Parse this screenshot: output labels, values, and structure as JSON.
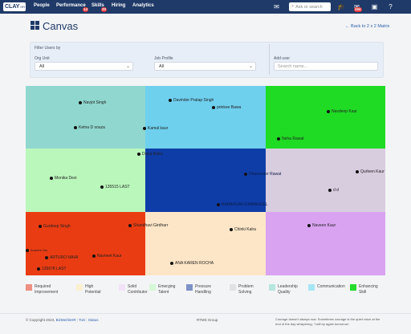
{
  "topbar": {
    "logo": "CLAY",
    "nav": [
      "People",
      "Performance",
      "Skills",
      "Hiring",
      "Analytics"
    ],
    "badges": {
      "performance": "14",
      "skills": "20",
      "notifications": "104"
    },
    "search_placeholder": "Ask or search"
  },
  "page": {
    "title": "Canvas",
    "back_link": "Back to 2 x 2 Matrix"
  },
  "filters": {
    "section_label": "Filter Users by",
    "org_unit_label": "Org Unit",
    "org_unit_value": "All",
    "job_profile_label": "Job Profile",
    "job_profile_value": "All",
    "user_label": "Add user",
    "user_placeholder": "Search name..."
  },
  "matrix": {
    "cells": [
      {
        "row": 0,
        "col": 0,
        "color": "#90d8cf"
      },
      {
        "row": 0,
        "col": 1,
        "color": "#6fd0ee"
      },
      {
        "row": 0,
        "col": 2,
        "color": "#1fdb24"
      },
      {
        "row": 1,
        "col": 0,
        "color": "#baf7bb"
      },
      {
        "row": 1,
        "col": 1,
        "color": "#0f3da8"
      },
      {
        "row": 1,
        "col": 2,
        "color": "#d8ccdf"
      },
      {
        "row": 2,
        "col": 0,
        "color": "#ea3c12"
      },
      {
        "row": 2,
        "col": 1,
        "color": "#fde6c7"
      },
      {
        "row": 2,
        "col": 2,
        "color": "#d9a3f1"
      }
    ],
    "people": [
      "Navjot Singh",
      "Ketna D souza",
      "Davinder Pratap Singh",
      "prinkee Bawa",
      "Kamal kaur",
      "Navdeep Kaur",
      "Neha Rawat",
      "Divya Batra",
      "Monika Devi",
      "135515 LAST",
      "Dhanender Rawat",
      "BARBAGAN EMMANUEL",
      "Qurleen Kaur",
      "d d",
      "Gurdeep Singh",
      "Shandhavi Girdharr",
      "Ananthi Yes",
      "ARTURO NAVA",
      "Navneet Kaur",
      "135678 LAST",
      "Chinki Kalra",
      "ANA KAREN ROCHA",
      "Naveen Kaur"
    ]
  },
  "legend": [
    {
      "label_1": "Required",
      "label_2": "Improvement",
      "color": "#ee8f82"
    },
    {
      "label_1": "High",
      "label_2": "Potential",
      "color": "#fcefcf"
    },
    {
      "label_1": "Solid",
      "label_2": "Contributor",
      "color": "#f2e2f7"
    },
    {
      "label_1": "Emerging",
      "label_2": "Talent",
      "color": "#d4f8d5"
    },
    {
      "label_1": "Pressure",
      "label_2": "Handling",
      "color": "#7f92c8"
    },
    {
      "label_1": "Problem",
      "label_2": "Solving",
      "color": "#e2e2e2"
    },
    {
      "label_1": "Leadership",
      "label_2": "Quality",
      "color": "#b6e6df"
    },
    {
      "label_1": "Communication",
      "label_2": "",
      "color": "#a6e6f4"
    },
    {
      "label_1": "Enhancing",
      "label_2": "Skill",
      "color": "#27dc2c"
    }
  ],
  "footer": {
    "copyright": "© Copyright 2023,",
    "company": "BizMerlinHR",
    "links": [
      "ToS",
      "Status"
    ],
    "center": "RTMS Group",
    "quote": "Courage doesn't always roar. Sometimes courage is the quiet voice at the end of the day whispering, 'I will try again tomorrow'."
  }
}
